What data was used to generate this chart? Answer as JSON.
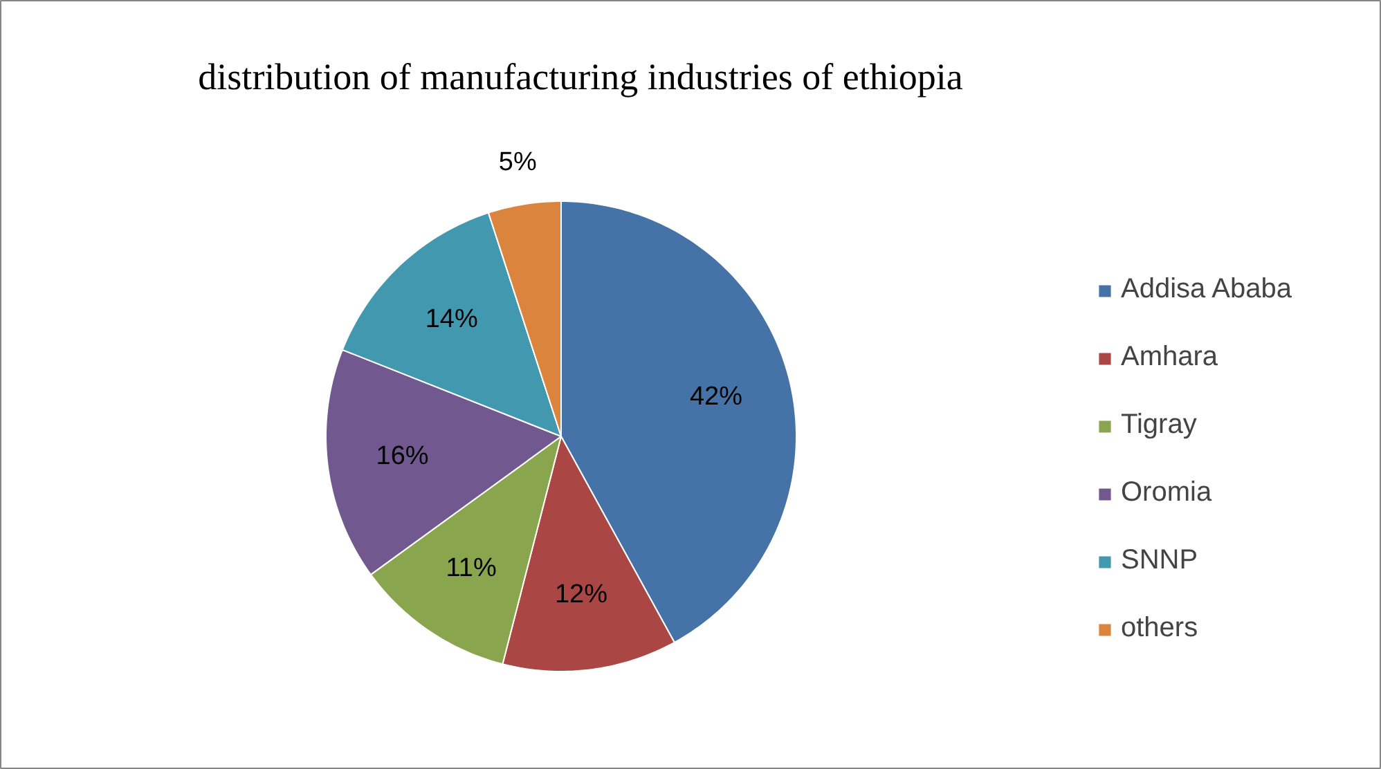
{
  "chart_data": {
    "type": "pie",
    "title": "distribution of manufacturing industries of ethiopia",
    "categories": [
      "Addisa Ababa",
      "Amhara",
      "Tigray",
      "Oromia",
      "SNNP",
      "others"
    ],
    "values": [
      42,
      12,
      11,
      16,
      14,
      5
    ],
    "colors": [
      "#4572a7",
      "#aa4643",
      "#89a54e",
      "#71588f",
      "#4198af",
      "#db843d"
    ],
    "value_labels": [
      "42%",
      "12%",
      "11%",
      "16%",
      "14%",
      "5%"
    ],
    "legend": "right"
  }
}
